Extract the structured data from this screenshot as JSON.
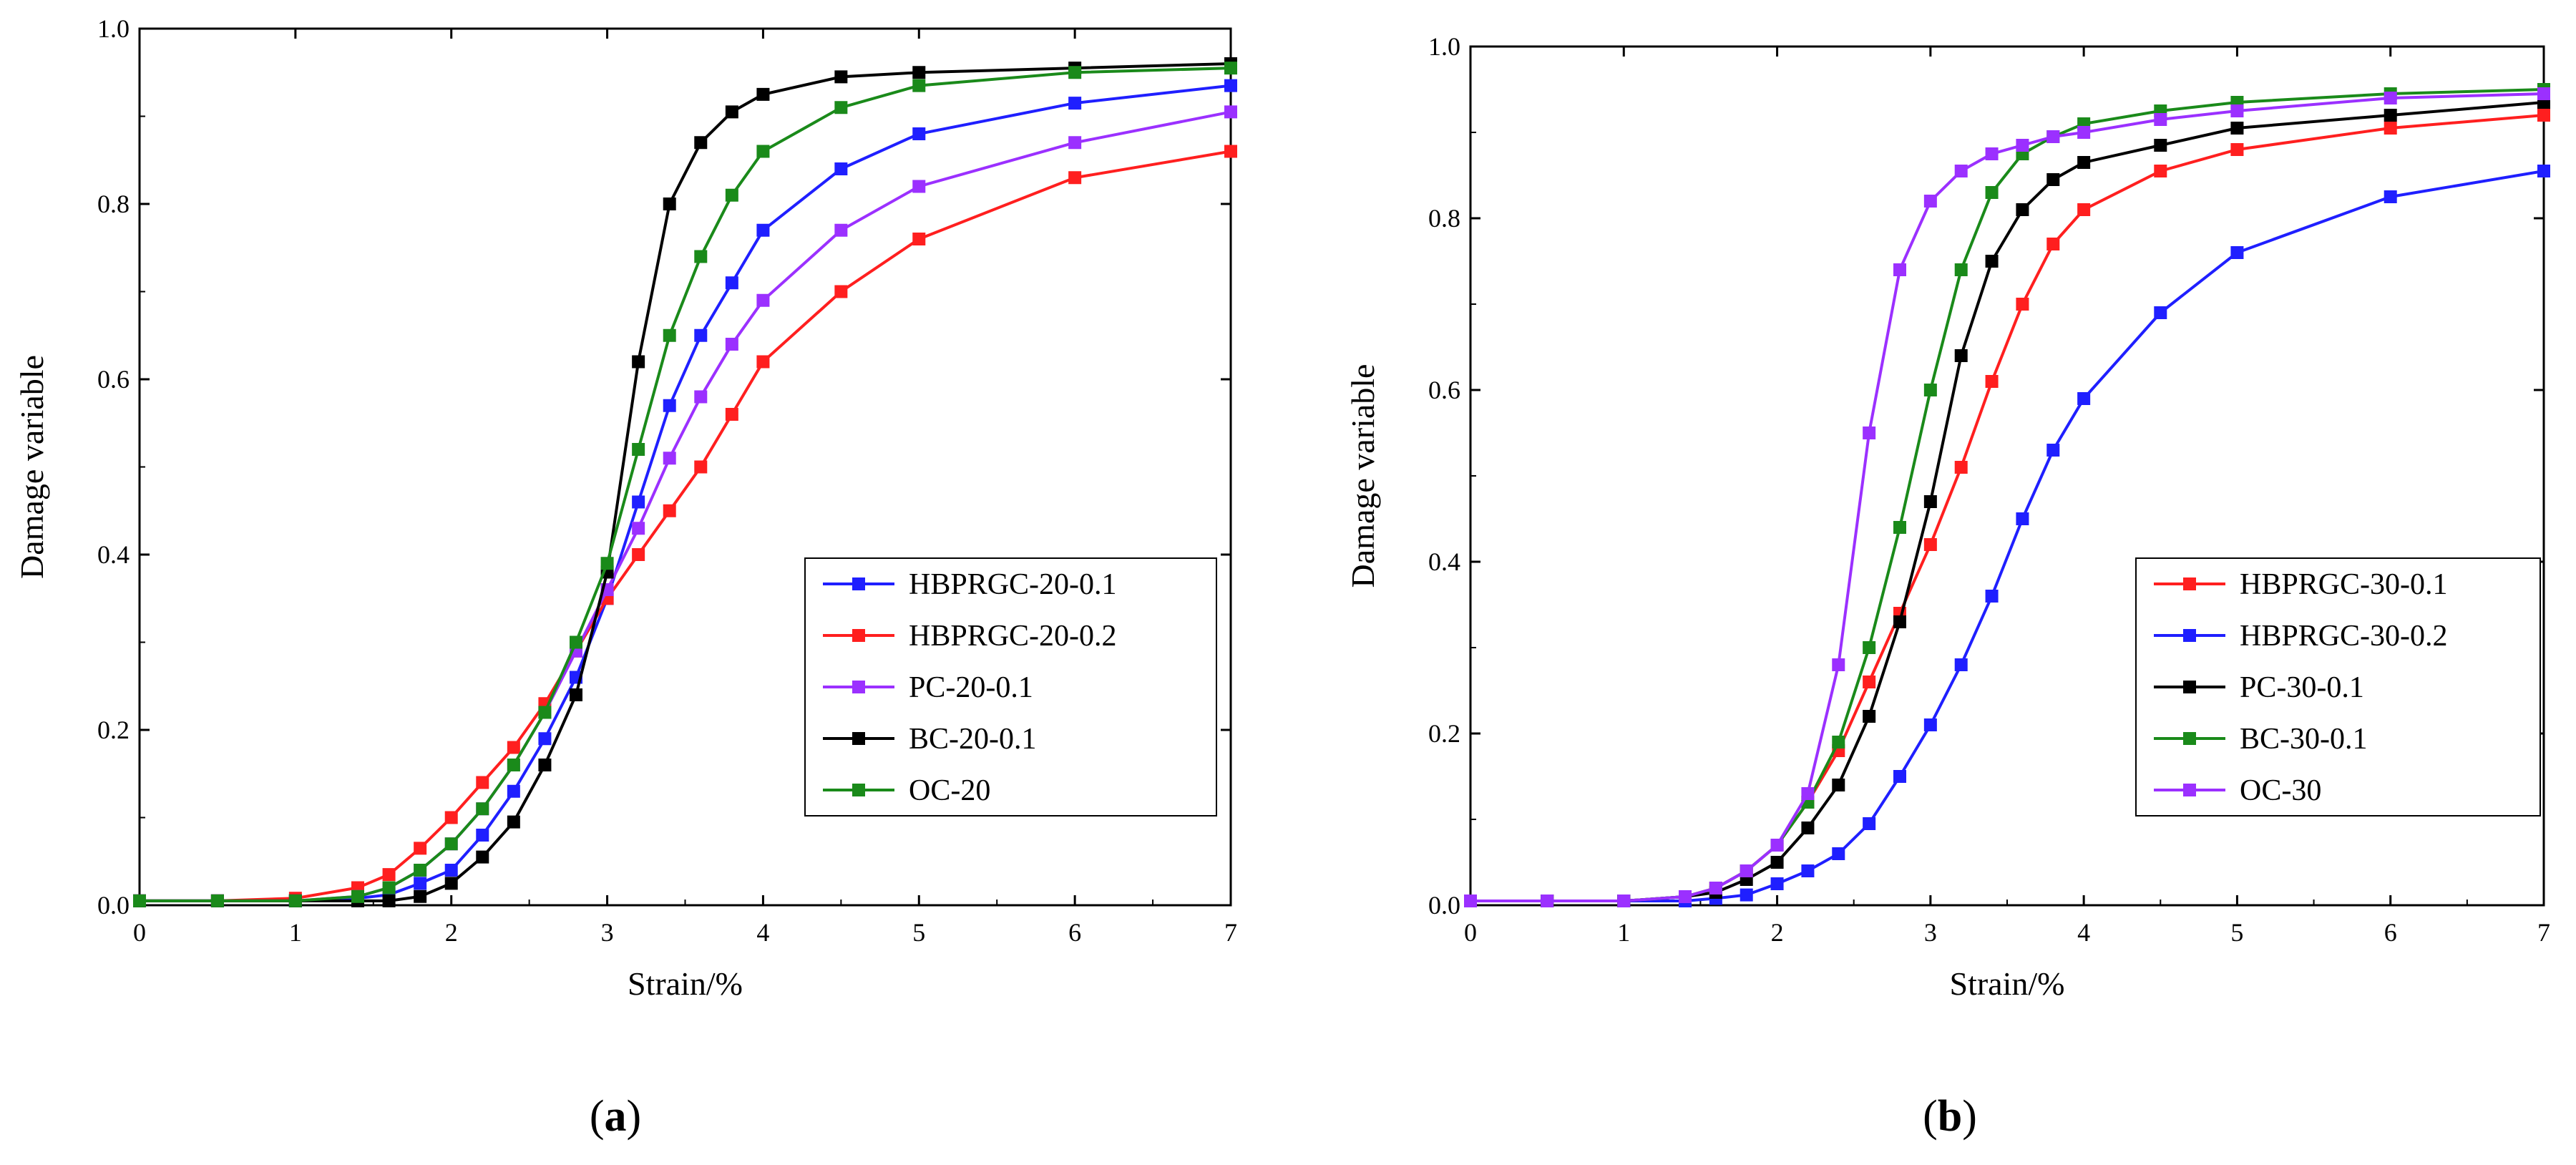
{
  "chart_data": [
    {
      "type": "line",
      "panel_label": "a",
      "title": "",
      "xlabel": "Strain/%",
      "ylabel": "Damage variable",
      "xlim": [
        0,
        7
      ],
      "ylim": [
        0,
        1.0
      ],
      "xticks": [
        0,
        1,
        2,
        3,
        4,
        5,
        6,
        7
      ],
      "yticks": [
        "0.0",
        "0.2",
        "0.4",
        "0.6",
        "0.8",
        "1.0"
      ],
      "grid": false,
      "legend_position": "lower-right",
      "x": [
        0.0,
        0.5,
        1.0,
        1.4,
        1.6,
        1.8,
        2.0,
        2.2,
        2.4,
        2.6,
        2.8,
        3.0,
        3.2,
        3.4,
        3.6,
        3.8,
        4.0,
        4.5,
        5.0,
        6.0,
        7.0
      ],
      "series": [
        {
          "name": "HBPRGC-20-0.1",
          "color": "#1f1fff",
          "values": [
            0.005,
            0.005,
            0.005,
            0.008,
            0.012,
            0.025,
            0.04,
            0.08,
            0.13,
            0.19,
            0.26,
            0.35,
            0.46,
            0.57,
            0.65,
            0.71,
            0.77,
            0.84,
            0.88,
            0.915,
            0.935
          ]
        },
        {
          "name": "HBPRGC-20-0.2",
          "color": "#ff1f1f",
          "values": [
            0.005,
            0.005,
            0.008,
            0.02,
            0.035,
            0.065,
            0.1,
            0.14,
            0.18,
            0.23,
            0.29,
            0.35,
            0.4,
            0.45,
            0.5,
            0.56,
            0.62,
            0.7,
            0.76,
            0.83,
            0.86
          ]
        },
        {
          "name": "PC-20-0.1",
          "color": "#9b30ff",
          "values": [
            0.005,
            0.005,
            0.005,
            0.01,
            0.02,
            0.04,
            0.07,
            0.11,
            0.16,
            0.22,
            0.29,
            0.36,
            0.43,
            0.51,
            0.58,
            0.64,
            0.69,
            0.77,
            0.82,
            0.87,
            0.905
          ]
        },
        {
          "name": "BC-20-0.1",
          "color": "#000000",
          "values": [
            0.005,
            0.005,
            0.005,
            0.005,
            0.005,
            0.01,
            0.025,
            0.055,
            0.095,
            0.16,
            0.24,
            0.38,
            0.62,
            0.8,
            0.87,
            0.905,
            0.925,
            0.945,
            0.95,
            0.955,
            0.96
          ]
        },
        {
          "name": "OC-20",
          "color": "#1a8a1a",
          "values": [
            0.005,
            0.005,
            0.005,
            0.01,
            0.02,
            0.04,
            0.07,
            0.11,
            0.16,
            0.22,
            0.3,
            0.39,
            0.52,
            0.65,
            0.74,
            0.81,
            0.86,
            0.91,
            0.935,
            0.95,
            0.955
          ]
        }
      ]
    },
    {
      "type": "line",
      "panel_label": "b",
      "title": "",
      "xlabel": "Strain/%",
      "ylabel": "Damage variable",
      "xlim": [
        0,
        7
      ],
      "ylim": [
        0,
        1.0
      ],
      "xticks": [
        0,
        1,
        2,
        3,
        4,
        5,
        6,
        7
      ],
      "yticks": [
        "0.0",
        "0.2",
        "0.4",
        "0.6",
        "0.8",
        "1.0"
      ],
      "grid": false,
      "legend_position": "lower-right",
      "x": [
        0.0,
        0.5,
        1.0,
        1.4,
        1.6,
        1.8,
        2.0,
        2.2,
        2.4,
        2.6,
        2.8,
        3.0,
        3.2,
        3.4,
        3.6,
        3.8,
        4.0,
        4.5,
        5.0,
        6.0,
        7.0
      ],
      "series": [
        {
          "name": "HBPRGC-30-0.1",
          "color": "#ff1f1f",
          "values": [
            0.005,
            0.005,
            0.005,
            0.01,
            0.02,
            0.04,
            0.07,
            0.12,
            0.18,
            0.26,
            0.34,
            0.42,
            0.51,
            0.61,
            0.7,
            0.77,
            0.81,
            0.855,
            0.88,
            0.905,
            0.92
          ]
        },
        {
          "name": "HBPRGC-30-0.2",
          "color": "#1f1fff",
          "values": [
            0.005,
            0.005,
            0.005,
            0.005,
            0.008,
            0.012,
            0.025,
            0.04,
            0.06,
            0.095,
            0.15,
            0.21,
            0.28,
            0.36,
            0.45,
            0.53,
            0.59,
            0.69,
            0.76,
            0.825,
            0.855
          ]
        },
        {
          "name": "PC-30-0.1",
          "color": "#000000",
          "values": [
            0.005,
            0.005,
            0.005,
            0.01,
            0.015,
            0.03,
            0.05,
            0.09,
            0.14,
            0.22,
            0.33,
            0.47,
            0.64,
            0.75,
            0.81,
            0.845,
            0.865,
            0.885,
            0.905,
            0.92,
            0.935
          ]
        },
        {
          "name": "BC-30-0.1",
          "color": "#1a8a1a",
          "values": [
            0.005,
            0.005,
            0.005,
            0.01,
            0.02,
            0.04,
            0.07,
            0.12,
            0.19,
            0.3,
            0.44,
            0.6,
            0.74,
            0.83,
            0.875,
            0.895,
            0.91,
            0.925,
            0.935,
            0.945,
            0.95
          ]
        },
        {
          "name": "OC-30",
          "color": "#9b30ff",
          "values": [
            0.005,
            0.005,
            0.005,
            0.01,
            0.02,
            0.04,
            0.07,
            0.13,
            0.28,
            0.55,
            0.74,
            0.82,
            0.855,
            0.875,
            0.885,
            0.895,
            0.9,
            0.915,
            0.925,
            0.94,
            0.945
          ]
        }
      ]
    }
  ]
}
